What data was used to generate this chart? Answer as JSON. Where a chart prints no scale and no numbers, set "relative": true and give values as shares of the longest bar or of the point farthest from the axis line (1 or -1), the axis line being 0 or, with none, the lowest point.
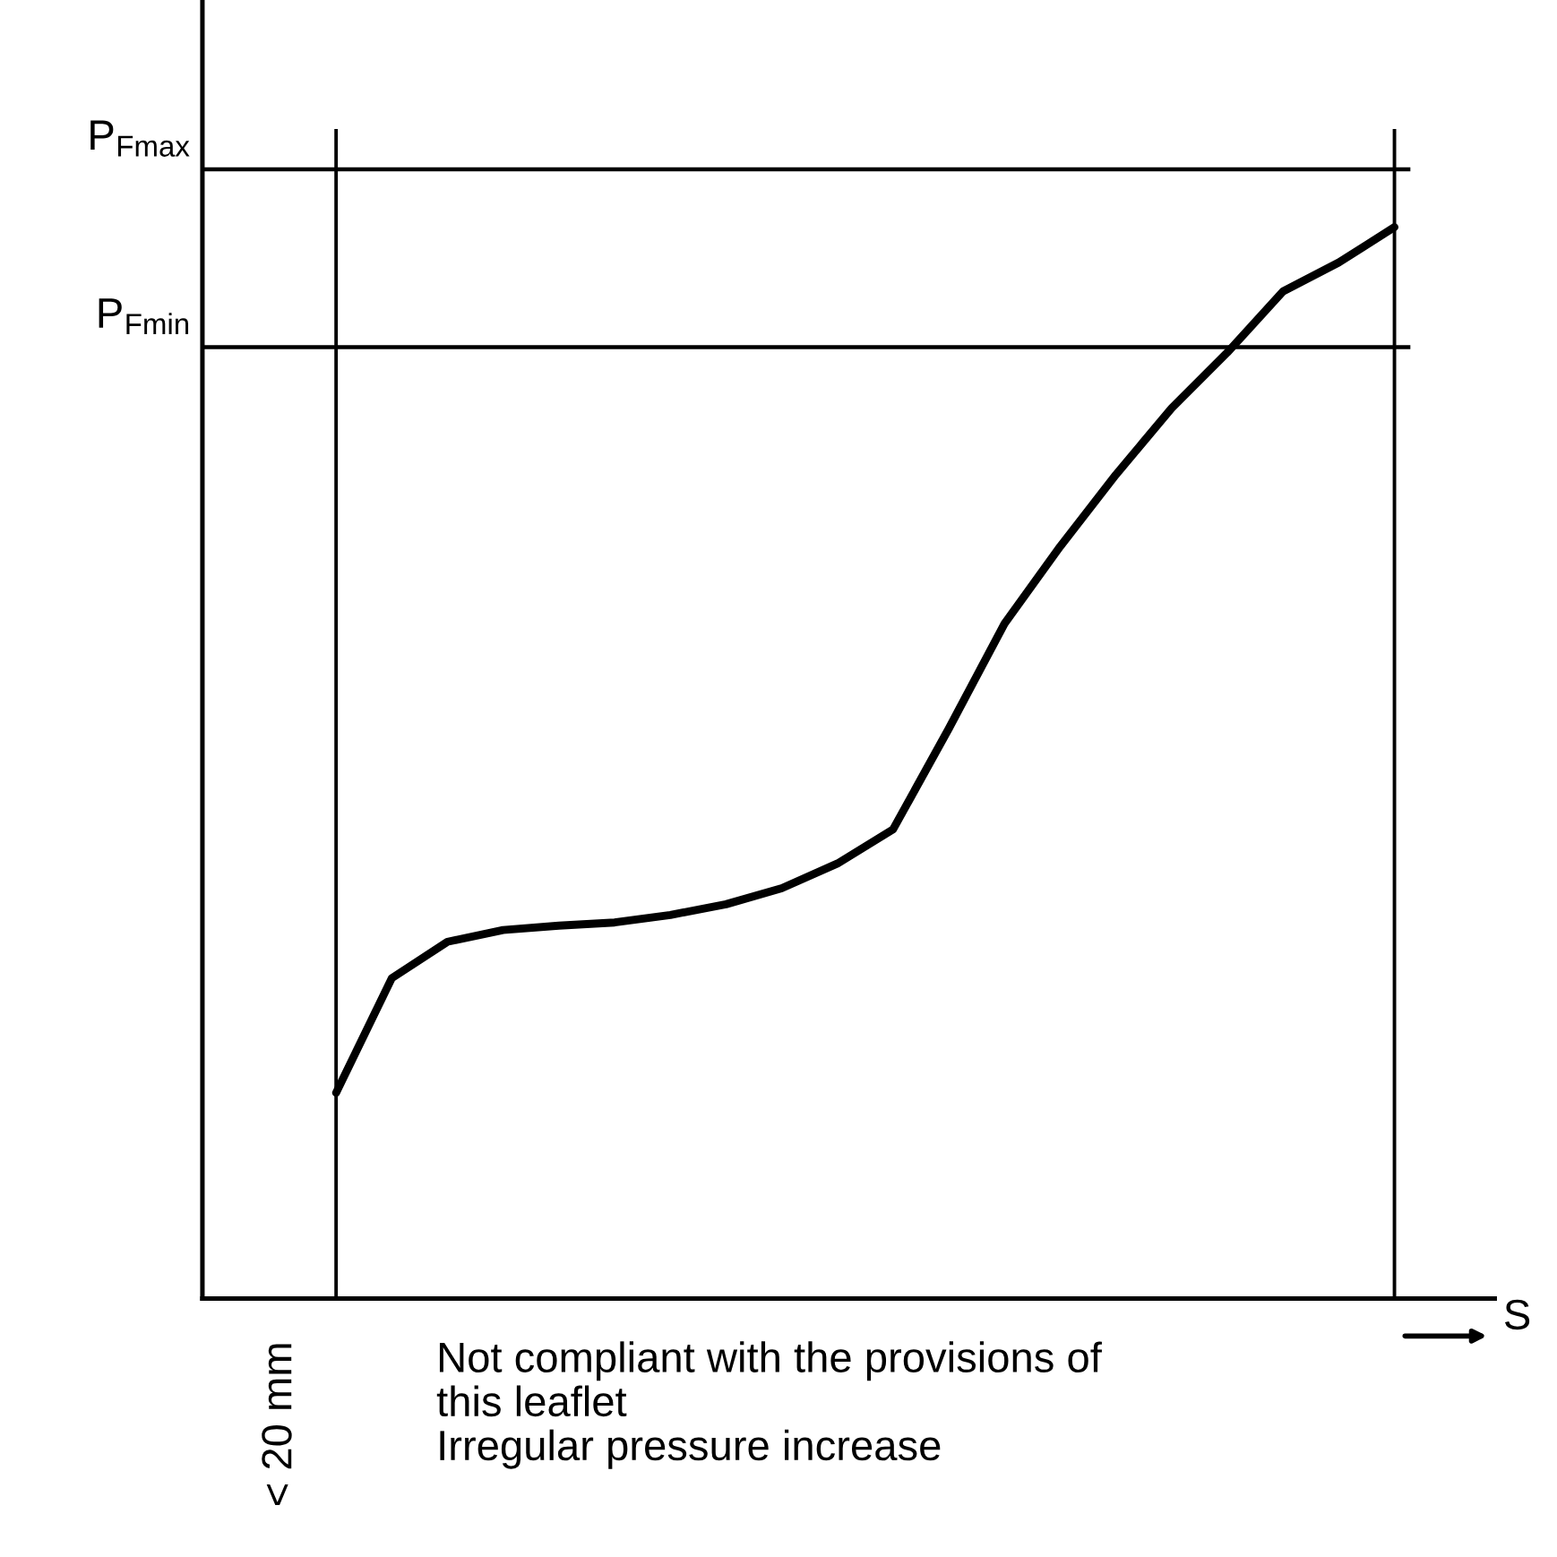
{
  "chart_data": {
    "type": "line",
    "relative": true,
    "xlabel": "S",
    "categories": [
      null,
      null,
      null,
      null,
      null,
      null,
      null,
      null,
      null,
      null,
      null,
      null,
      null,
      null,
      null,
      null,
      null,
      null,
      null,
      null
    ],
    "series": [
      {
        "color": "#000000",
        "values": [
          0.192,
          0.299,
          0.333,
          0.344,
          0.348,
          0.351,
          0.358,
          0.368,
          0.383,
          0.406,
          0.438,
          0.532,
          0.63,
          0.702,
          0.769,
          0.831,
          0.883,
          0.94,
          0.967,
          1
        ]
      }
    ],
    "ref_lines": [
      {
        "axis": "y",
        "value": 1.054,
        "label": "P$_{Fmax}$",
        "color": "#000000"
      },
      {
        "axis": "y",
        "value": 0.888,
        "label": "P$_{Fmin}$",
        "color": "#000000"
      }
    ],
    "annotations": [
      "< 20 mm",
      "Not compliant with the provisions of\nthis leaflet\nIrregular pressure increase"
    ],
    "grid": false,
    "marker": "none",
    "line_style": "solid"
  }
}
